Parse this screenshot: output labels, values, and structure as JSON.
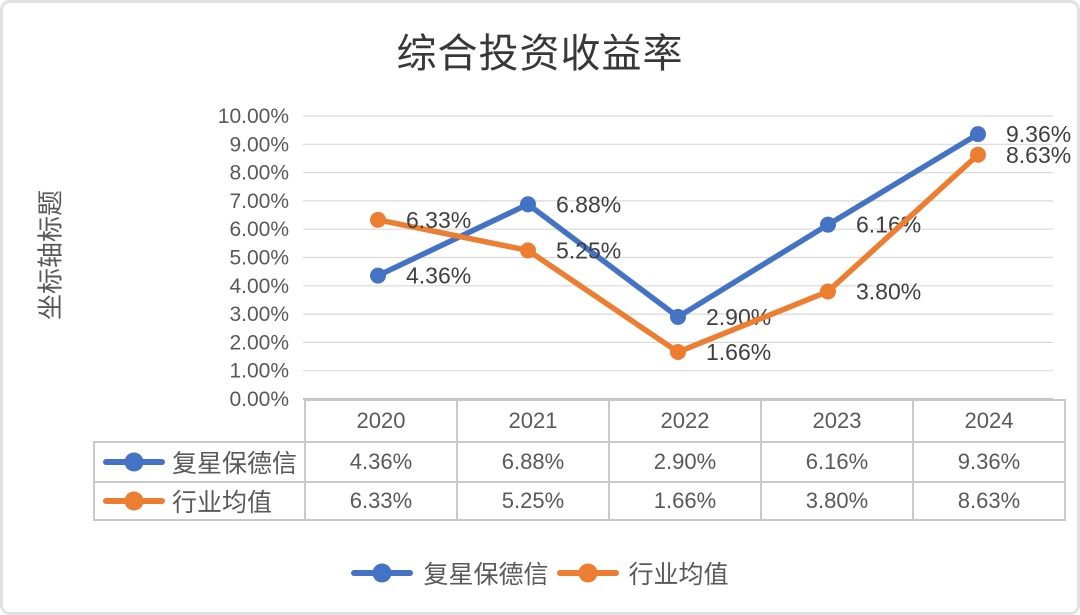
{
  "chart_data": {
    "type": "line",
    "title": "综合投资收益率",
    "y_axis_title": "坐标轴标题",
    "categories": [
      "2020",
      "2021",
      "2022",
      "2023",
      "2024"
    ],
    "series": [
      {
        "name": "复星保德信",
        "color": "#4472C4",
        "values": [
          4.36,
          6.88,
          2.9,
          6.16,
          9.36
        ],
        "labels": [
          "4.36%",
          "6.88%",
          "2.90%",
          "6.16%",
          "9.36%"
        ]
      },
      {
        "name": "行业均值",
        "color": "#ED7D31",
        "values": [
          6.33,
          5.25,
          1.66,
          3.8,
          8.63
        ],
        "labels": [
          "6.33%",
          "5.25%",
          "1.66%",
          "3.80%",
          "8.63%"
        ]
      }
    ],
    "y_axis": {
      "min": 0,
      "max": 10,
      "step": 1,
      "tick_labels": [
        "0.00%",
        "1.00%",
        "2.00%",
        "3.00%",
        "4.00%",
        "5.00%",
        "6.00%",
        "7.00%",
        "8.00%",
        "9.00%",
        "10.00%"
      ]
    },
    "grid": true,
    "legend_position": "bottom",
    "data_table_shown": true,
    "colors": {
      "gridline": "#d9d9d9",
      "axis_line": "#aeaeae",
      "tick_text": "#595959",
      "data_label_text": "#404040",
      "table_border": "#c9c9c9",
      "table_text": "#595959",
      "title_text": "#383838"
    }
  }
}
